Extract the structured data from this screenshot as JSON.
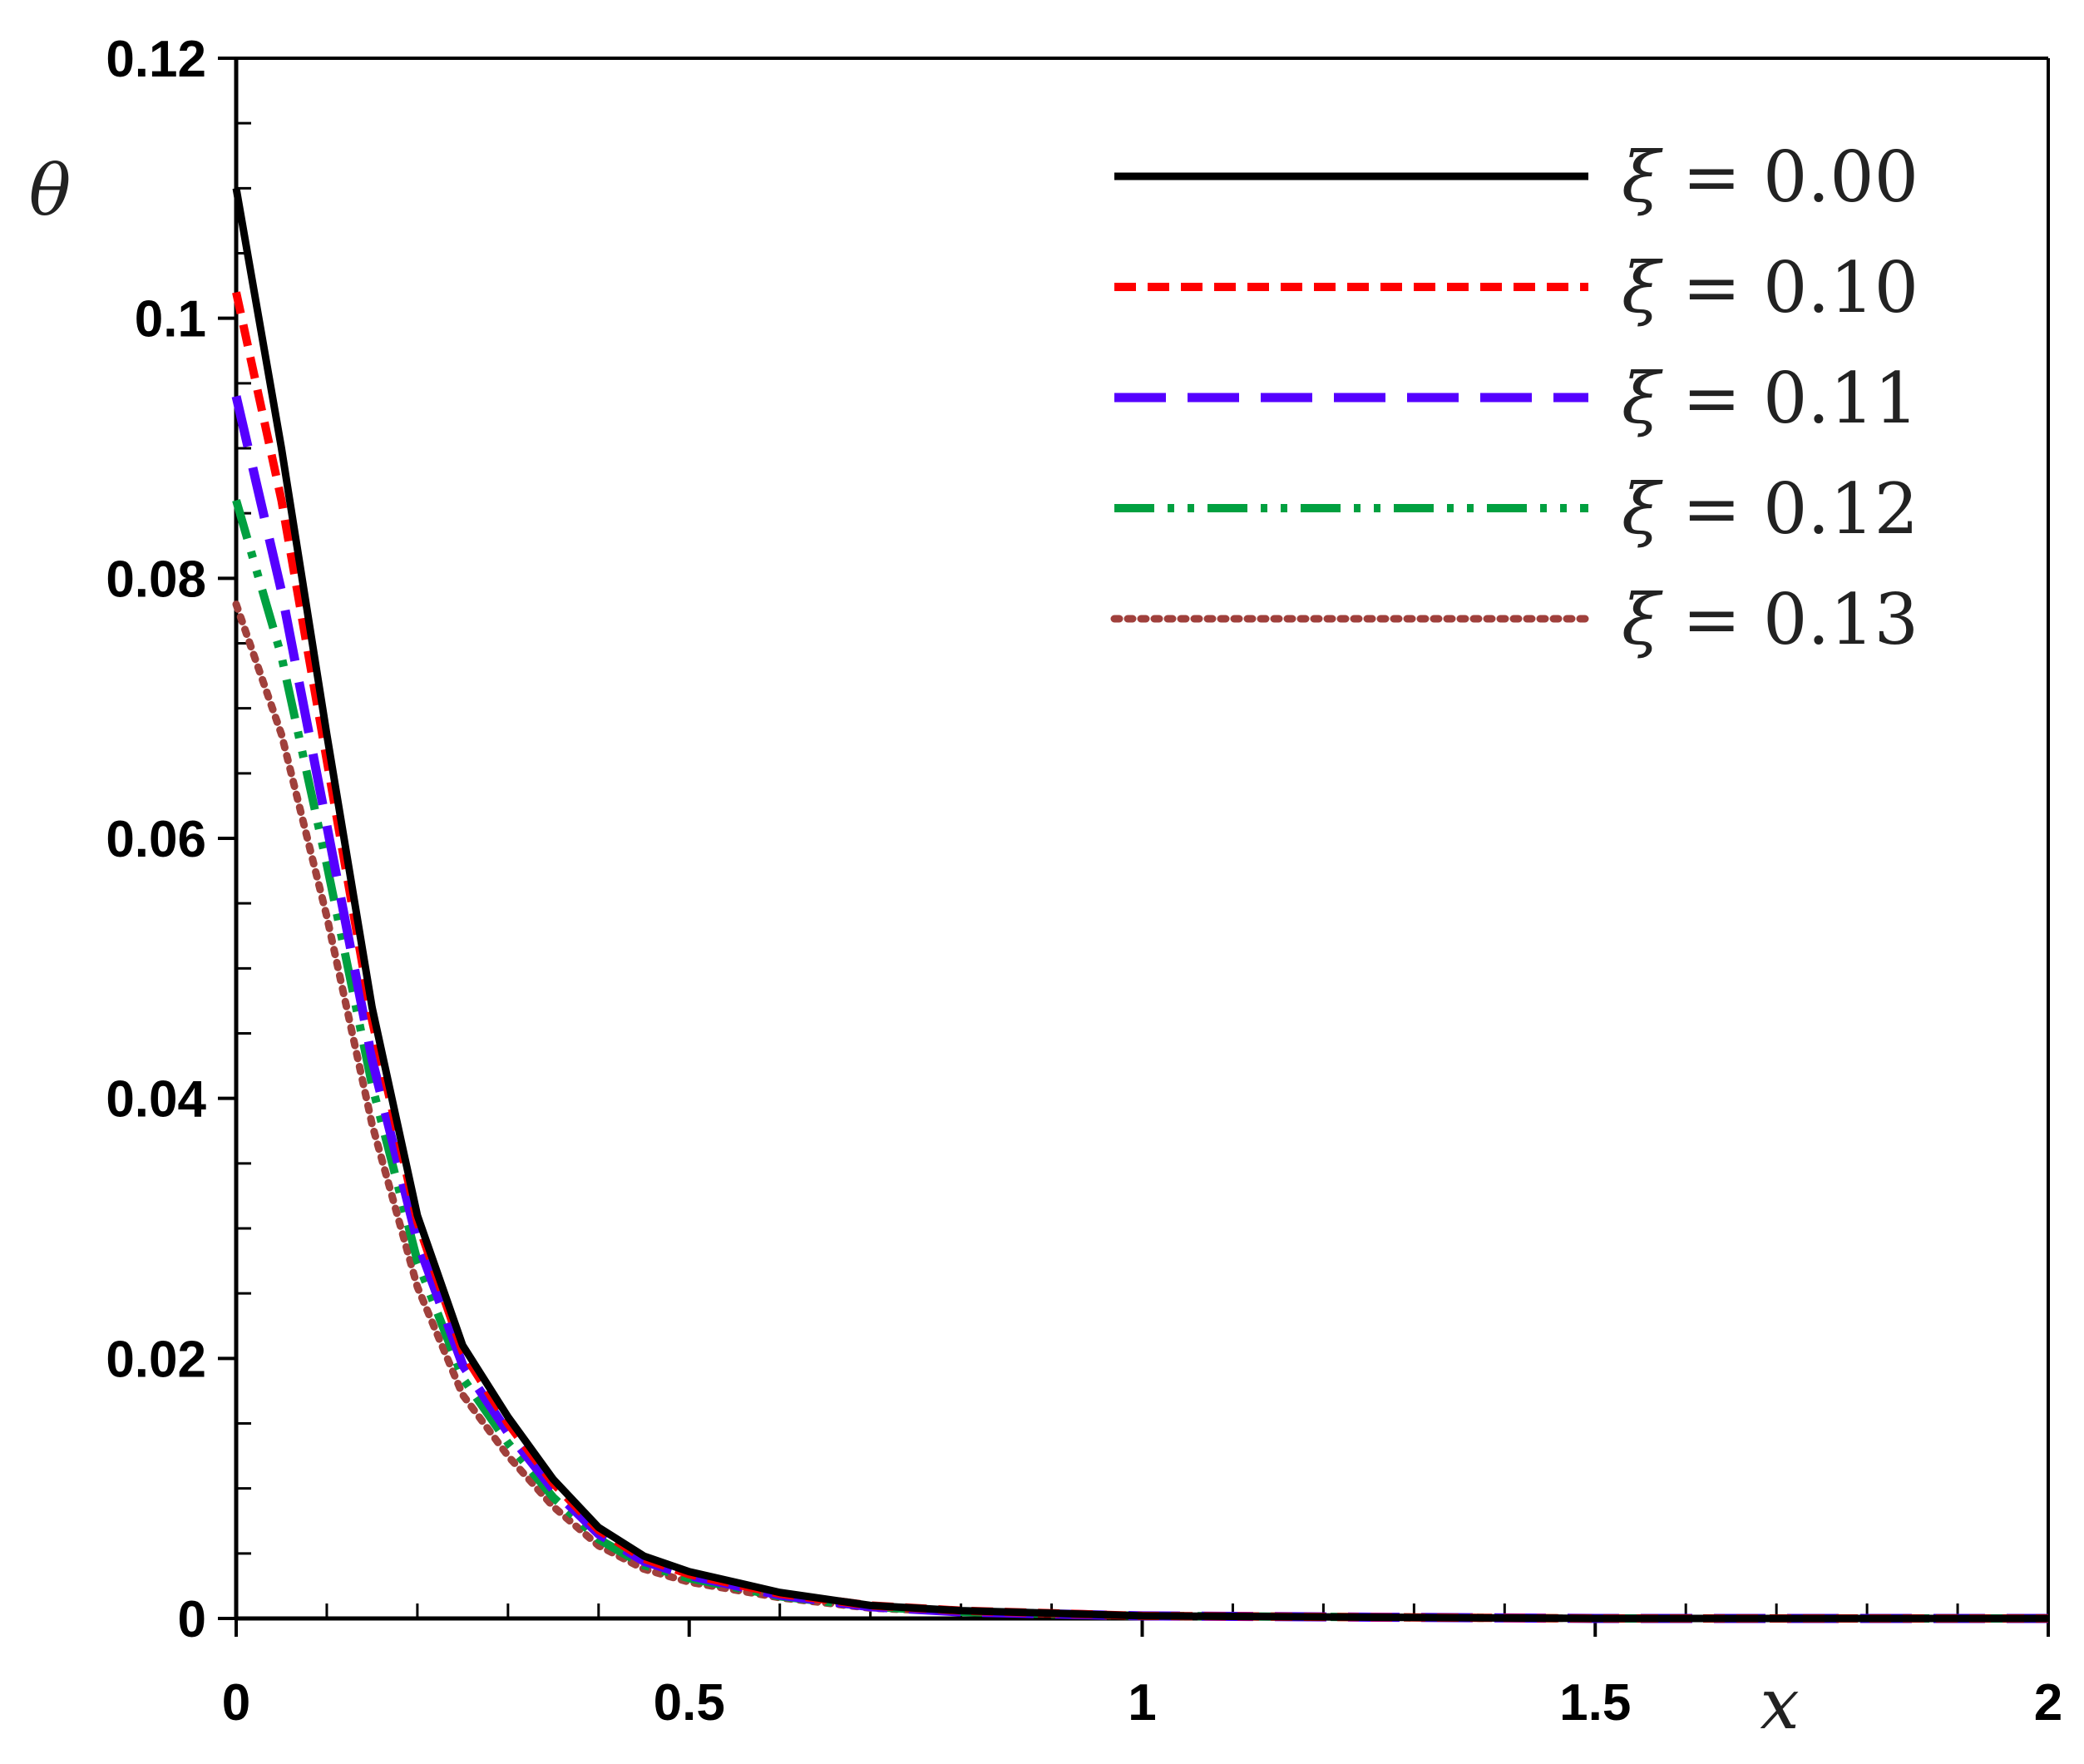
{
  "chart_data": {
    "type": "line",
    "xlabel": "x",
    "ylabel": "θ",
    "xlim": [
      0,
      2
    ],
    "ylim": [
      0,
      0.12
    ],
    "xticks": [
      0,
      0.5,
      1,
      1.5,
      2
    ],
    "xtick_labels": [
      "0",
      "0.5",
      "1",
      "1.5",
      "2"
    ],
    "yticks": [
      0,
      0.02,
      0.04,
      0.06,
      0.08,
      0.1,
      0.12
    ],
    "ytick_labels": [
      "0",
      "0.02",
      "0.04",
      "0.06",
      "0.08",
      "0.1",
      "0.12"
    ],
    "grid": false,
    "legend_position": "top-right",
    "x": [
      0,
      0.05,
      0.1,
      0.15,
      0.2,
      0.25,
      0.3,
      0.35,
      0.4,
      0.45,
      0.5,
      0.6,
      0.7,
      0.8,
      1.0,
      1.5,
      2.0
    ],
    "series": [
      {
        "name": "ξ = 0.00",
        "legend_symbol": "ξ",
        "legend_rest": " = 0.00",
        "color": "#000000",
        "style": "solid",
        "values": [
          0.11,
          0.09,
          0.068,
          0.047,
          0.031,
          0.021,
          0.0155,
          0.0107,
          0.007,
          0.0048,
          0.0036,
          0.002,
          0.001,
          0.0006,
          0.0002,
          0.0,
          0.0
        ]
      },
      {
        "name": "ξ = 0.10",
        "legend_symbol": "ξ",
        "legend_rest": " = 0.10",
        "color": "#ff0000",
        "style": "dashed",
        "values": [
          0.102,
          0.086,
          0.066,
          0.046,
          0.0305,
          0.0205,
          0.015,
          0.0104,
          0.0068,
          0.0046,
          0.0034,
          0.0019,
          0.001,
          0.0006,
          0.0002,
          0.0,
          0.0
        ]
      },
      {
        "name": "ξ = 0.11",
        "legend_symbol": "ξ",
        "legend_rest": " = 0.11",
        "color": "#5500ff",
        "style": "longdash",
        "values": [
          0.094,
          0.079,
          0.061,
          0.043,
          0.029,
          0.0195,
          0.0143,
          0.0099,
          0.0065,
          0.0044,
          0.0033,
          0.0018,
          0.0009,
          0.0005,
          0.0002,
          0.0,
          0.0
        ]
      },
      {
        "name": "ξ = 0.12",
        "legend_symbol": "ξ",
        "legend_rest": " = 0.12",
        "color": "#00a040",
        "style": "dashdotdot",
        "values": [
          0.086,
          0.074,
          0.058,
          0.041,
          0.0275,
          0.0185,
          0.0135,
          0.0093,
          0.0061,
          0.0041,
          0.0031,
          0.0017,
          0.0009,
          0.0005,
          0.0002,
          0.0,
          0.0
        ]
      },
      {
        "name": "ξ = 0.13",
        "legend_symbol": "ξ",
        "legend_rest": " = 0.13",
        "color": "#a0403c",
        "style": "dotted",
        "values": [
          0.078,
          0.068,
          0.054,
          0.038,
          0.0255,
          0.0172,
          0.0125,
          0.0086,
          0.0056,
          0.0038,
          0.0028,
          0.0016,
          0.0008,
          0.0005,
          0.0002,
          0.0,
          0.0
        ]
      }
    ]
  }
}
